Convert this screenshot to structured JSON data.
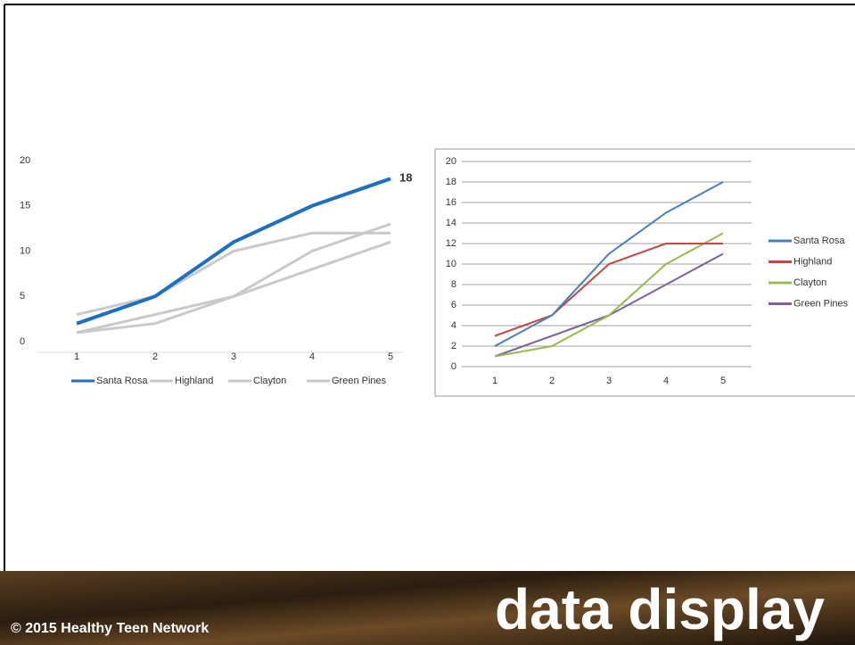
{
  "chart_data": [
    {
      "type": "line",
      "categories": [
        "1",
        "2",
        "3",
        "4",
        "5"
      ],
      "series": [
        {
          "name": "Santa Rosa",
          "color": "#1f6fbf",
          "values": [
            2,
            5,
            11,
            15,
            18
          ],
          "value_labels": [
            null,
            null,
            null,
            null,
            "18"
          ]
        },
        {
          "name": "Highland",
          "color": "#c9c9c9",
          "values": [
            3,
            5,
            10,
            12,
            12
          ]
        },
        {
          "name": "Clayton",
          "color": "#c9c9c9",
          "values": [
            1,
            2,
            5,
            10,
            13
          ]
        },
        {
          "name": "Green Pines",
          "color": "#c9c9c9",
          "values": [
            1,
            3,
            5,
            8,
            11
          ]
        }
      ],
      "ylim": [
        0,
        20
      ],
      "yticks": [
        0,
        5,
        10,
        15,
        20
      ],
      "grid": false,
      "legend": "bottom"
    },
    {
      "type": "line",
      "categories": [
        "1",
        "2",
        "3",
        "4",
        "5"
      ],
      "series": [
        {
          "name": "Santa Rosa",
          "color": "#4a7ebb",
          "values": [
            2,
            5,
            11,
            15,
            18
          ]
        },
        {
          "name": "Highland",
          "color": "#be4b48",
          "values": [
            3,
            5,
            10,
            12,
            12
          ]
        },
        {
          "name": "Clayton",
          "color": "#98b954",
          "values": [
            1,
            2,
            5,
            10,
            13
          ]
        },
        {
          "name": "Green Pines",
          "color": "#7d60a0",
          "values": [
            1,
            3,
            5,
            8,
            11
          ]
        }
      ],
      "ylim": [
        0,
        20
      ],
      "yticks": [
        0,
        2,
        4,
        6,
        8,
        10,
        12,
        14,
        16,
        18,
        20
      ],
      "grid": true,
      "legend": "right"
    }
  ],
  "footer": {
    "copyright": "© 2015 Healthy Teen Network",
    "title": "data display"
  }
}
